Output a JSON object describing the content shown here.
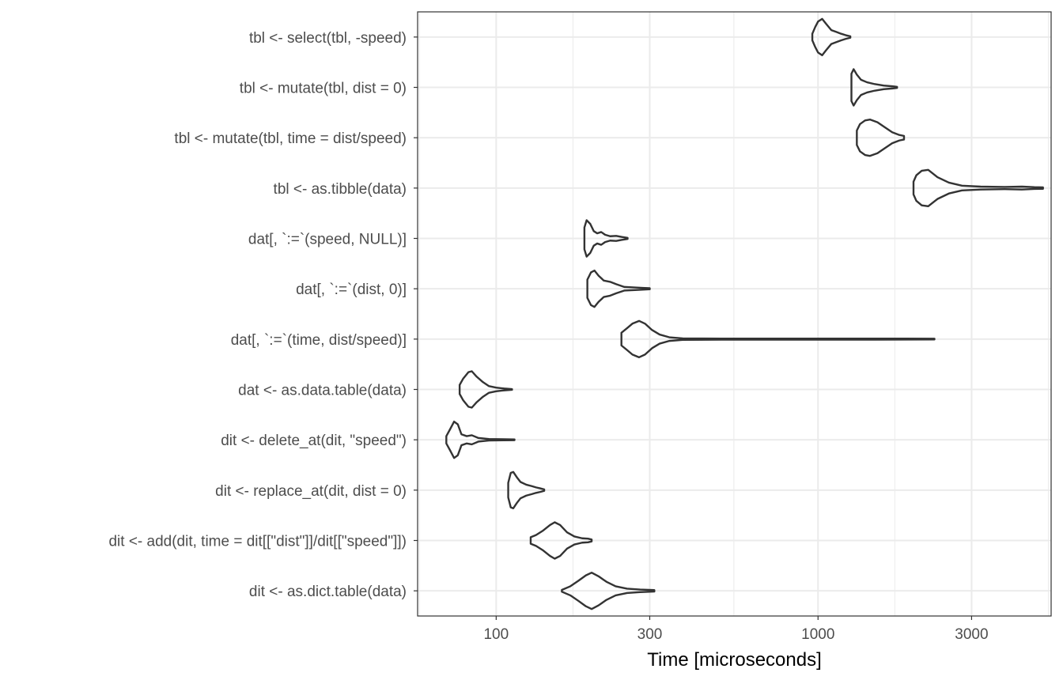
{
  "chart_data": {
    "type": "violin",
    "title": "",
    "xlabel": "Time [microseconds]",
    "ylabel": "",
    "x_scale": "log10",
    "xlim": [
      57,
      5300
    ],
    "x_ticks": [
      100,
      300,
      1000,
      3000
    ],
    "x_tick_labels": [
      "100",
      "300",
      "1000",
      "3000"
    ],
    "grid": true,
    "theme": "black-and-white",
    "colors": {
      "outline": "#333333",
      "grid": "#ebebeb",
      "panel_border": "#333333"
    },
    "categories": [
      "tbl <- select(tbl, -speed)",
      "tbl <- mutate(tbl, dist = 0)",
      "tbl <- mutate(tbl, time = dist/speed)",
      "tbl <- as.tibble(data)",
      "dat[, `:=`(speed, NULL)]",
      "dat[, `:=`(dist, 0)]",
      "dat[, `:=`(time, dist/speed)]",
      "dat <- as.data.table(data)",
      "dit <- delete_at(dit, \"speed\")",
      "dit <- replace_at(dit, dist = 0)",
      "dit <- add(dit, time = dit[[\"dist\"]]/dit[[\"speed\"]])",
      "dit <- as.dict.table(data)"
    ],
    "violins": [
      {
        "min": 960,
        "max": 1260,
        "profile": [
          [
            960,
            0.18
          ],
          [
            980,
            0.55
          ],
          [
            1000,
            0.85
          ],
          [
            1030,
            1.0
          ],
          [
            1060,
            0.72
          ],
          [
            1100,
            0.38
          ],
          [
            1140,
            0.28
          ],
          [
            1180,
            0.18
          ],
          [
            1220,
            0.1
          ],
          [
            1260,
            0.04
          ]
        ]
      },
      {
        "min": 1270,
        "max": 1760,
        "profile": [
          [
            1270,
            0.75
          ],
          [
            1290,
            1.0
          ],
          [
            1320,
            0.7
          ],
          [
            1360,
            0.42
          ],
          [
            1420,
            0.28
          ],
          [
            1500,
            0.18
          ],
          [
            1600,
            0.1
          ],
          [
            1700,
            0.06
          ],
          [
            1760,
            0.03
          ]
        ]
      },
      {
        "min": 1320,
        "max": 1850,
        "profile": [
          [
            1320,
            0.4
          ],
          [
            1350,
            0.75
          ],
          [
            1400,
            0.95
          ],
          [
            1450,
            1.0
          ],
          [
            1530,
            0.85
          ],
          [
            1620,
            0.55
          ],
          [
            1700,
            0.3
          ],
          [
            1790,
            0.15
          ],
          [
            1850,
            0.1
          ]
        ]
      },
      {
        "min": 1980,
        "max": 5000,
        "profile": [
          [
            1980,
            0.35
          ],
          [
            2020,
            0.7
          ],
          [
            2100,
            0.95
          ],
          [
            2200,
            1.0
          ],
          [
            2350,
            0.6
          ],
          [
            2550,
            0.3
          ],
          [
            2800,
            0.13
          ],
          [
            3200,
            0.08
          ],
          [
            3800,
            0.06
          ],
          [
            4300,
            0.08
          ],
          [
            4700,
            0.05
          ],
          [
            5000,
            0.04
          ]
        ]
      },
      {
        "min": 188,
        "max": 256,
        "profile": [
          [
            188,
            0.6
          ],
          [
            191,
            1.0
          ],
          [
            196,
            0.8
          ],
          [
            201,
            0.4
          ],
          [
            206,
            0.28
          ],
          [
            212,
            0.35
          ],
          [
            218,
            0.2
          ],
          [
            226,
            0.12
          ],
          [
            236,
            0.14
          ],
          [
            246,
            0.08
          ],
          [
            256,
            0.03
          ]
        ]
      },
      {
        "min": 192,
        "max": 300,
        "profile": [
          [
            192,
            0.5
          ],
          [
            197,
            0.9
          ],
          [
            202,
            1.0
          ],
          [
            208,
            0.72
          ],
          [
            216,
            0.45
          ],
          [
            226,
            0.38
          ],
          [
            236,
            0.25
          ],
          [
            250,
            0.1
          ],
          [
            270,
            0.07
          ],
          [
            285,
            0.05
          ],
          [
            300,
            0.03
          ]
        ]
      },
      {
        "min": 245,
        "max": 2300,
        "profile": [
          [
            245,
            0.35
          ],
          [
            255,
            0.6
          ],
          [
            265,
            0.85
          ],
          [
            278,
            1.0
          ],
          [
            290,
            0.85
          ],
          [
            305,
            0.5
          ],
          [
            322,
            0.25
          ],
          [
            345,
            0.1
          ],
          [
            380,
            0.04
          ],
          [
            500,
            0.03
          ],
          [
            800,
            0.03
          ],
          [
            1500,
            0.03
          ],
          [
            2300,
            0.02
          ]
        ]
      },
      {
        "min": 77,
        "max": 112,
        "profile": [
          [
            77,
            0.25
          ],
          [
            79,
            0.6
          ],
          [
            82,
            0.95
          ],
          [
            84,
            1.0
          ],
          [
            87,
            0.7
          ],
          [
            91,
            0.4
          ],
          [
            95,
            0.18
          ],
          [
            100,
            0.1
          ],
          [
            106,
            0.05
          ],
          [
            112,
            0.02
          ]
        ]
      },
      {
        "min": 70,
        "max": 114,
        "profile": [
          [
            70,
            0.2
          ],
          [
            72,
            0.6
          ],
          [
            74,
            1.0
          ],
          [
            76,
            0.85
          ],
          [
            78,
            0.3
          ],
          [
            81,
            0.2
          ],
          [
            84,
            0.25
          ],
          [
            88,
            0.1
          ],
          [
            95,
            0.04
          ],
          [
            105,
            0.03
          ],
          [
            114,
            0.02
          ]
        ]
      },
      {
        "min": 109,
        "max": 141,
        "profile": [
          [
            109,
            0.4
          ],
          [
            111,
            0.95
          ],
          [
            113,
            1.0
          ],
          [
            116,
            0.7
          ],
          [
            119,
            0.45
          ],
          [
            124,
            0.3
          ],
          [
            129,
            0.22
          ],
          [
            133,
            0.15
          ],
          [
            137,
            0.1
          ],
          [
            141,
            0.04
          ]
        ]
      },
      {
        "min": 128,
        "max": 198,
        "profile": [
          [
            128,
            0.18
          ],
          [
            133,
            0.3
          ],
          [
            140,
            0.55
          ],
          [
            147,
            0.85
          ],
          [
            152,
            1.0
          ],
          [
            158,
            0.85
          ],
          [
            166,
            0.45
          ],
          [
            175,
            0.22
          ],
          [
            185,
            0.12
          ],
          [
            193,
            0.1
          ],
          [
            198,
            0.05
          ]
        ]
      },
      {
        "min": 160,
        "max": 310,
        "profile": [
          [
            160,
            0.05
          ],
          [
            170,
            0.25
          ],
          [
            180,
            0.55
          ],
          [
            190,
            0.85
          ],
          [
            198,
            1.0
          ],
          [
            208,
            0.8
          ],
          [
            220,
            0.5
          ],
          [
            235,
            0.25
          ],
          [
            255,
            0.12
          ],
          [
            280,
            0.07
          ],
          [
            310,
            0.04
          ]
        ]
      }
    ]
  }
}
